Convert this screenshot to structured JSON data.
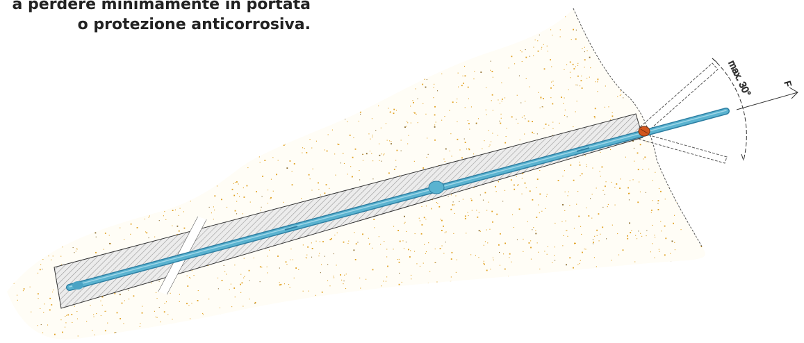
{
  "caption": {
    "line1": "a perdere minimamente in portata",
    "line2": "o protezione anticorrosiva."
  },
  "diagram": {
    "angle_label": "max. 30°",
    "force_label": "F",
    "colors": {
      "soil": "#e0a020",
      "bar": "#5ab3d0",
      "bar_edge": "#2d7fa3",
      "grout_hatch": "#8a8a8a",
      "anchor_head": "#d2561c",
      "outline": "#333333"
    },
    "icons": [
      "soil-particles",
      "anchor-bar",
      "grout-body",
      "anchor-head",
      "force-arrow"
    ]
  }
}
